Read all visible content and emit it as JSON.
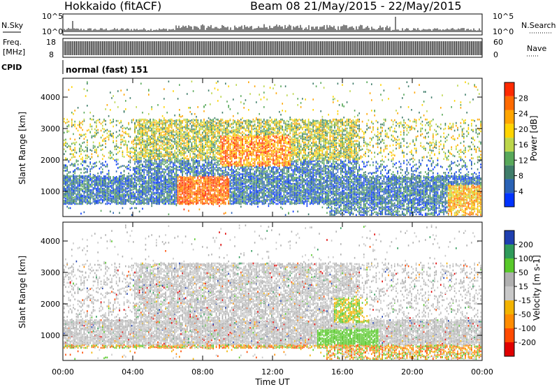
{
  "header": {
    "station": "Hokkaido (fitACF)",
    "beam_info": "Beam 08  21/May/2015 - 22/May/2015"
  },
  "panels": {
    "nsky": {
      "label": "N.Sky",
      "right_label": "N.Search",
      "tick_top": "10^5",
      "tick_bottom": "10^0"
    },
    "freq": {
      "label_top": "Freq.",
      "label_unit": "[MHz]",
      "left_top": "18",
      "left_bottom": "8",
      "right_top": "60",
      "right_bottom": "0",
      "right_label": "Nave"
    },
    "cpid": {
      "label": "CPID",
      "program": "normal (fast) 151"
    }
  },
  "colors": {
    "power": [
      "#0033ff",
      "#2a62b5",
      "#3f7d6a",
      "#58a85a",
      "#bcd64a",
      "#ffd400",
      "#ffa500",
      "#ff6a00",
      "#ff2a00"
    ],
    "velocity": [
      "#e00000",
      "#ff4a00",
      "#ff8c00",
      "#f2b300",
      "#c8c8c8",
      "#b0b0b0",
      "#58c82a",
      "#2f9a5a",
      "#1f3fb0"
    ]
  },
  "chart_data": [
    {
      "type": "heatmap",
      "name": "power",
      "xlabel": "",
      "ylabel": "Slant Range [km]",
      "x_ticks": [
        "00:00",
        "04:00",
        "08:00",
        "12:00",
        "16:00",
        "20:00",
        "00:00"
      ],
      "y_ticks": [
        "1000",
        "2000",
        "3000",
        "4000"
      ],
      "xlim": [
        0,
        24
      ],
      "ylim": [
        200,
        4600
      ],
      "colorbar": {
        "label": "Power [dB]",
        "ticks": [
          "4",
          "8",
          "12",
          "16",
          "20",
          "24",
          "28"
        ]
      }
    },
    {
      "type": "heatmap",
      "name": "velocity",
      "xlabel": "Time UT",
      "ylabel": "Slant Range [km]",
      "x_ticks": [
        "00:00",
        "04:00",
        "08:00",
        "12:00",
        "16:00",
        "20:00",
        "00:00"
      ],
      "y_ticks": [
        "1000",
        "2000",
        "3000",
        "4000"
      ],
      "xlim": [
        0,
        24
      ],
      "ylim": [
        200,
        4600
      ],
      "colorbar": {
        "label": "Velocity [m s-1]",
        "ticks": [
          "200",
          "100",
          "50",
          "15",
          "-15",
          "-50",
          "-100",
          "-200"
        ]
      }
    }
  ]
}
